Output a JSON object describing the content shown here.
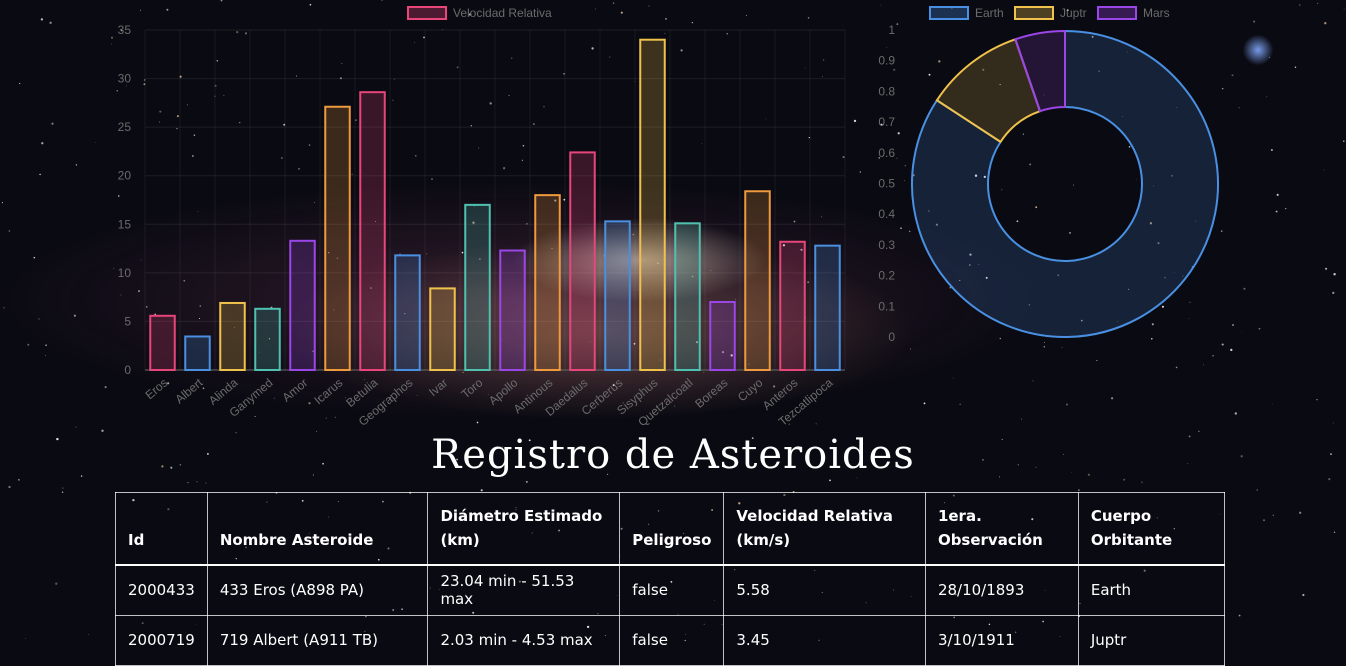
{
  "theme": {
    "bar_colors": [
      "#e8457a",
      "#4a90e2",
      "#f0c24b",
      "#4fc1b0",
      "#9b46e6",
      "#ef9a3c"
    ],
    "donut_colors": [
      "#4a90e2",
      "#f0c24b",
      "#9b46e6"
    ],
    "axis_color": "#6b6b6b"
  },
  "chart_data": [
    {
      "type": "bar",
      "series": [
        {
          "name": "Velocidad Relativa",
          "values": [
            5.58,
            3.45,
            6.9,
            6.3,
            13.3,
            27.1,
            28.6,
            11.8,
            8.4,
            17.0,
            12.3,
            18.0,
            22.4,
            15.3,
            34.0,
            15.1,
            7.0,
            18.4,
            13.2,
            12.8
          ]
        }
      ],
      "categories": [
        "Eros",
        "Albert",
        "Alinda",
        "Ganymed",
        "Amor",
        "Icarus",
        "Betulia",
        "Geographos",
        "Ivar",
        "Toro",
        "Apollo",
        "Antinous",
        "Daedalus",
        "Cerberus",
        "Sisyphus",
        "Quetzalcoatl",
        "Boreas",
        "Cuyo",
        "Anteros",
        "Tezcatlipoca"
      ],
      "ylim": [
        0,
        35
      ],
      "yticks": [
        "0",
        "5",
        "10",
        "15",
        "20",
        "25",
        "30",
        "35"
      ],
      "legend_position": "top",
      "grid": true
    },
    {
      "type": "pie",
      "style": "doughnut",
      "categories": [
        "Earth",
        "Juptr",
        "Mars"
      ],
      "values": [
        16,
        2,
        1
      ],
      "axis_ticks": [
        "0",
        "0.1",
        "0.2",
        "0.3",
        "0.4",
        "0.5",
        "0.6",
        "0.7",
        "0.8",
        "0.9",
        "1"
      ],
      "legend_position": "top"
    }
  ],
  "page": {
    "title": "Registro de Asteroides"
  },
  "table": {
    "columns": [
      [
        "Id"
      ],
      [
        "Nombre Asteroide"
      ],
      [
        "Diámetro Estimado",
        "(km)"
      ],
      [
        "Peligroso"
      ],
      [
        "Velocidad Relativa",
        "(km/s)"
      ],
      [
        "1era.",
        "Observación"
      ],
      [
        "Cuerpo",
        "Orbitante"
      ]
    ],
    "rows": [
      [
        "2000433",
        "433 Eros (A898 PA)",
        "23.04 min - 51.53 max",
        "false",
        "5.58",
        "28/10/1893",
        "Earth"
      ],
      [
        "2000719",
        "719 Albert (A911 TB)",
        "2.03 min - 4.53 max",
        "false",
        "3.45",
        "3/10/1911",
        "Juptr"
      ]
    ]
  }
}
